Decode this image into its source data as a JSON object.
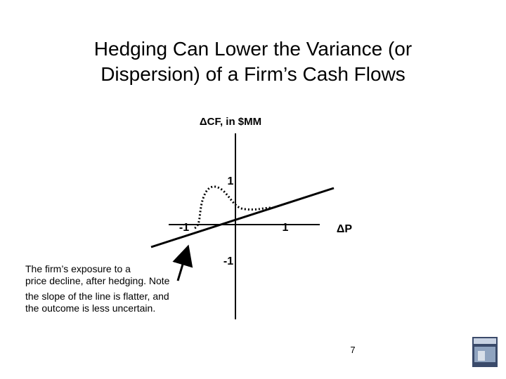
{
  "title": {
    "lines": [
      "Hedging Can Lower the Variance (or",
      "Dispersion) of a Firm’s Cash Flows"
    ]
  },
  "diagram": {
    "y_axis_label": "ΔCF, in $MM",
    "x_axis_label": "ΔP",
    "labels": {
      "y_pos": "1",
      "y_neg": "-1",
      "x_pos": "1",
      "x_neg": "-1"
    },
    "annotation": {
      "lines": [
        "The firm’s exposure to a",
        "price decline, after hedging. Note",
        "the slope of the line is flatter, and",
        "the outcome is less uncertain."
      ]
    }
  },
  "footer": {
    "page_number": "7"
  }
}
